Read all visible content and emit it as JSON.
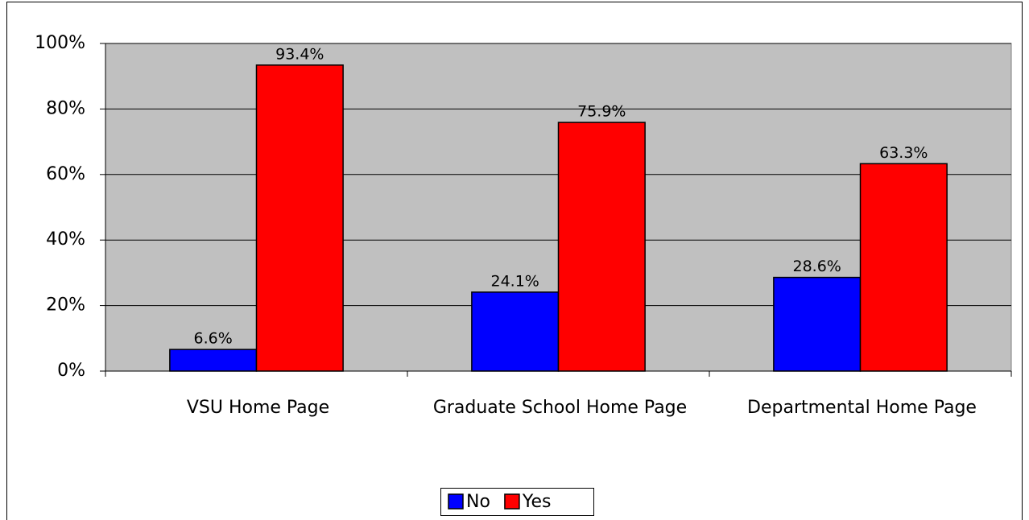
{
  "chart_data": {
    "type": "bar",
    "categories": [
      "VSU Home Page",
      "Graduate School Home Page",
      "Departmental Home Page"
    ],
    "series": [
      {
        "name": "No",
        "color": "#0000ff",
        "values": [
          6.6,
          24.1,
          28.6
        ],
        "value_labels": [
          "6.6%",
          "24.1%",
          "28.6%"
        ]
      },
      {
        "name": "Yes",
        "color": "#ff0000",
        "values": [
          93.4,
          75.9,
          63.3
        ],
        "value_labels": [
          "93.4%",
          "75.9%",
          "63.3%"
        ]
      }
    ],
    "ylim": [
      0,
      100
    ],
    "yticks": [
      {
        "value": 0,
        "label": "0%"
      },
      {
        "value": 20,
        "label": "20%"
      },
      {
        "value": 40,
        "label": "40%"
      },
      {
        "value": 60,
        "label": "60%"
      },
      {
        "value": 80,
        "label": "80%"
      },
      {
        "value": 100,
        "label": "100%"
      }
    ],
    "grid": true,
    "plot_background": "#c0c0c0",
    "legend": "bottom"
  }
}
